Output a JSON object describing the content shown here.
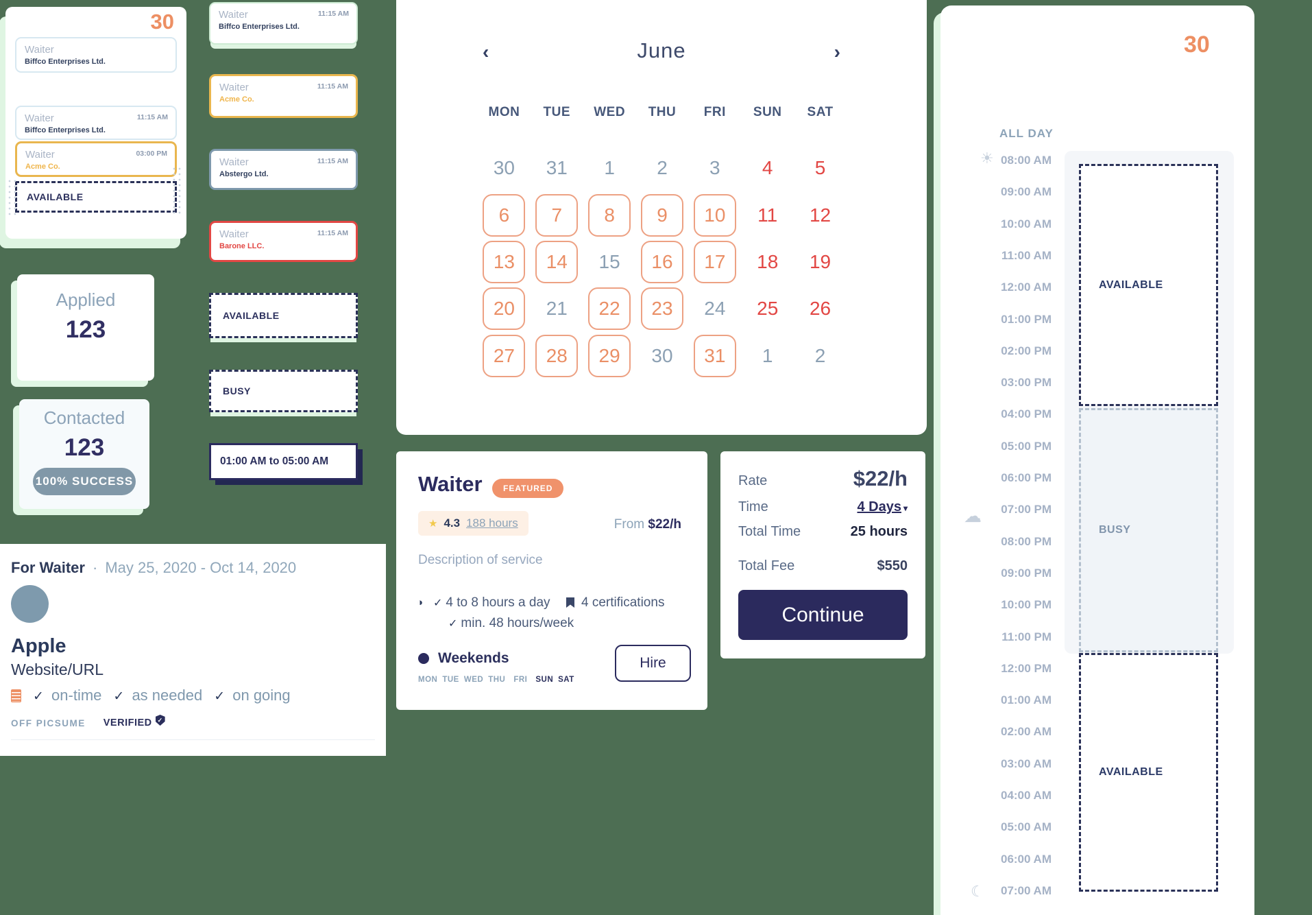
{
  "colors": {
    "background_green": "#4D6E53",
    "accent_orange": "#ED8F63",
    "accent_red": "#E24744",
    "accent_yellow": "#E9B64E",
    "navy": "#2B2B5E",
    "mint": "#DFF5E2",
    "slate": "#8198A8"
  },
  "stack_card": {
    "count": "30",
    "notifications": [
      {
        "title": "Waiter",
        "company": "Biffco Enterprises Ltd.",
        "time": "",
        "variant": "blue",
        "company_color": "navy"
      },
      {
        "title": "Waiter",
        "company": "Biffco Enterprises Ltd.",
        "time": "11:15 AM",
        "variant": "blue",
        "company_color": "navy"
      },
      {
        "title": "Waiter",
        "company": "Acme Co.",
        "time": "03:00 PM",
        "variant": "yellow",
        "company_color": "yellow"
      }
    ],
    "available_label": "AVAILABLE"
  },
  "stats": {
    "applied": {
      "label": "Applied",
      "value": "123"
    },
    "contacted": {
      "label": "Contacted",
      "value": "123",
      "badge": "100% SUCCESS"
    }
  },
  "notif_column": {
    "cards": [
      {
        "title": "Waiter",
        "company": "Biffco Enterprises Ltd.",
        "time": "11:15 AM",
        "variant": "mint",
        "company_color": "navy"
      },
      {
        "title": "Waiter",
        "company": "Acme Co.",
        "time": "11:15 AM",
        "variant": "yellow",
        "company_color": "yellow"
      },
      {
        "title": "Waiter",
        "company": "Abstergo Ltd.",
        "time": "11:15 AM",
        "variant": "slate",
        "company_color": "navy"
      },
      {
        "title": "Waiter",
        "company": "Barone LLC.",
        "time": "11:15 AM",
        "variant": "red",
        "company_color": "red"
      }
    ],
    "available_label": "AVAILABLE",
    "busy_label": "BUSY",
    "time_range": "01:00 AM to 05:00 AM"
  },
  "calendar": {
    "month": "June",
    "prev_icon": "‹",
    "next_icon": "›",
    "day_names": [
      "MON",
      "TUE",
      "WED",
      "THU",
      "FRI",
      "SUN",
      "SAT"
    ],
    "weeks": [
      [
        {
          "d": "30",
          "s": "g"
        },
        {
          "d": "31",
          "s": "g"
        },
        {
          "d": "1",
          "s": "g"
        },
        {
          "d": "2",
          "s": "g"
        },
        {
          "d": "3",
          "s": "g"
        },
        {
          "d": "4",
          "s": "r"
        },
        {
          "d": "5",
          "s": "r"
        }
      ],
      [
        {
          "d": "6",
          "s": "b"
        },
        {
          "d": "7",
          "s": "b"
        },
        {
          "d": "8",
          "s": "b"
        },
        {
          "d": "9",
          "s": "b"
        },
        {
          "d": "10",
          "s": "b"
        },
        {
          "d": "11",
          "s": "r"
        },
        {
          "d": "12",
          "s": "r"
        }
      ],
      [
        {
          "d": "13",
          "s": "b"
        },
        {
          "d": "14",
          "s": "b"
        },
        {
          "d": "15",
          "s": "g"
        },
        {
          "d": "16",
          "s": "b"
        },
        {
          "d": "17",
          "s": "b"
        },
        {
          "d": "18",
          "s": "r"
        },
        {
          "d": "19",
          "s": "r"
        }
      ],
      [
        {
          "d": "20",
          "s": "b"
        },
        {
          "d": "21",
          "s": "g"
        },
        {
          "d": "22",
          "s": "b"
        },
        {
          "d": "23",
          "s": "b"
        },
        {
          "d": "24",
          "s": "g"
        },
        {
          "d": "25",
          "s": "r"
        },
        {
          "d": "26",
          "s": "r"
        }
      ],
      [
        {
          "d": "27",
          "s": "b"
        },
        {
          "d": "28",
          "s": "b"
        },
        {
          "d": "29",
          "s": "b"
        },
        {
          "d": "30",
          "s": "g"
        },
        {
          "d": "31",
          "s": "b"
        },
        {
          "d": "1",
          "s": "g"
        },
        {
          "d": "2",
          "s": "g"
        }
      ]
    ]
  },
  "service_card": {
    "title": "Waiter",
    "badge": "FEATURED",
    "star_icon": "★",
    "rating": "4.3",
    "hours": "188 hours",
    "from_label": "From",
    "from_price": "$22/h",
    "description": "Description of service",
    "clock_icon": "◑",
    "check_icon": "✓",
    "feature_1a": "4 to 8 hours a day",
    "feature_1b": "min. 48 hours/week",
    "feature_2": "4 certifications",
    "weekends_label": "Weekends",
    "days": [
      {
        "t": "MON",
        "bold": false,
        "sp": false
      },
      {
        "t": "TUE",
        "bold": false,
        "sp": false
      },
      {
        "t": "WED",
        "bold": false,
        "sp": false
      },
      {
        "t": "THU",
        "bold": false,
        "sp": false
      },
      {
        "t": "FRI",
        "bold": false,
        "sp": true
      },
      {
        "t": "SUN",
        "bold": true,
        "sp": true
      },
      {
        "t": "SAT",
        "bold": true,
        "sp": false
      }
    ],
    "hire_label": "Hire"
  },
  "pricing": {
    "rate_label": "Rate",
    "rate_value": "$22/h",
    "time_label": "Time",
    "time_value": "4 Days",
    "time_caret": "▾",
    "total_time_label": "Total Time",
    "total_time_value": "25 hours",
    "total_fee_label": "Total Fee",
    "total_fee_value": "$550",
    "continue_label": "Continue"
  },
  "profile": {
    "for_label": "For Waiter",
    "separator": "·",
    "date_range": "May 25, 2020 - Oct 14, 2020",
    "name": "Apple",
    "website": "Website/URL",
    "check_icon": "✓",
    "checks": [
      "on-time",
      "as needed",
      "on going"
    ],
    "source": "OFF PICSUME",
    "verified": "VERIFIED",
    "verified_check": "✓"
  },
  "schedule": {
    "count": "30",
    "all_day_label": "ALL DAY",
    "times": [
      {
        "t": "08:00 AM",
        "icon": "sun"
      },
      {
        "t": "09:00 AM",
        "icon": ""
      },
      {
        "t": "10:00 AM",
        "icon": ""
      },
      {
        "t": "11:00 AM",
        "icon": ""
      },
      {
        "t": "12:00 AM",
        "icon": ""
      },
      {
        "t": "01:00 PM",
        "icon": ""
      },
      {
        "t": "02:00 PM",
        "icon": ""
      },
      {
        "t": "03:00 PM",
        "icon": ""
      },
      {
        "t": "04:00 PM",
        "icon": ""
      },
      {
        "t": "05:00 PM",
        "icon": ""
      },
      {
        "t": "06:00 PM",
        "icon": ""
      },
      {
        "t": "07:00 PM",
        "icon": "cloud"
      },
      {
        "t": "08:00 PM",
        "icon": ""
      },
      {
        "t": "09:00 PM",
        "icon": ""
      },
      {
        "t": "10:00 PM",
        "icon": ""
      },
      {
        "t": "11:00 PM",
        "icon": ""
      },
      {
        "t": "12:00 PM",
        "icon": ""
      },
      {
        "t": "01:00 AM",
        "icon": ""
      },
      {
        "t": "02:00 AM",
        "icon": ""
      },
      {
        "t": "03:00 AM",
        "icon": ""
      },
      {
        "t": "04:00 AM",
        "icon": ""
      },
      {
        "t": "05:00 AM",
        "icon": ""
      },
      {
        "t": "06:00 AM",
        "icon": ""
      },
      {
        "t": "07:00 AM",
        "icon": "moon"
      }
    ],
    "icon_glyphs": {
      "sun": "☀",
      "cloud": "☁",
      "moon": "☾"
    },
    "blocks": [
      {
        "label": "AVAILABLE",
        "type": "available"
      },
      {
        "label": "BUSY",
        "type": "busy"
      },
      {
        "label": "AVAILABLE",
        "type": "available"
      }
    ]
  }
}
